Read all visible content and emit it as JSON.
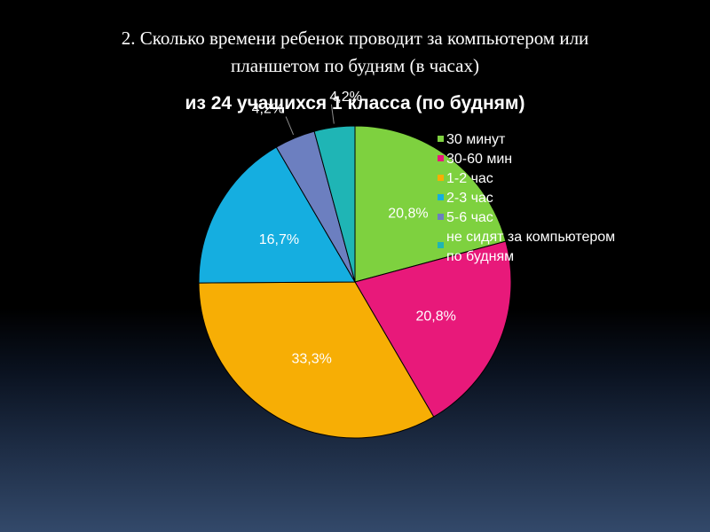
{
  "slide": {
    "title_line1": "2. Сколько времени ребенок проводит за компьютером или",
    "title_line2": "планшетом по будням (в часах)"
  },
  "chart_data": {
    "type": "pie",
    "title": "из 24 учащихся 1 класса (по будням)",
    "categories": [
      "30 минут",
      "30-60 мин",
      "1-2 час",
      "2-3 час",
      "5-6 час",
      "не сидят за компьютером по будням"
    ],
    "values": [
      20.8,
      20.8,
      33.3,
      16.7,
      4.2,
      4.2
    ],
    "labels": [
      "20,8%",
      "20,8%",
      "33,3%",
      "16,7%",
      "4,2%",
      "4,2%"
    ],
    "colors": [
      "#7ed13f",
      "#e8197a",
      "#f7ae05",
      "#15aee0",
      "#6c7fc0",
      "#1fb5b5"
    ],
    "start_angle": "12 o'clock",
    "direction": "clockwise",
    "legend_position": "right"
  }
}
